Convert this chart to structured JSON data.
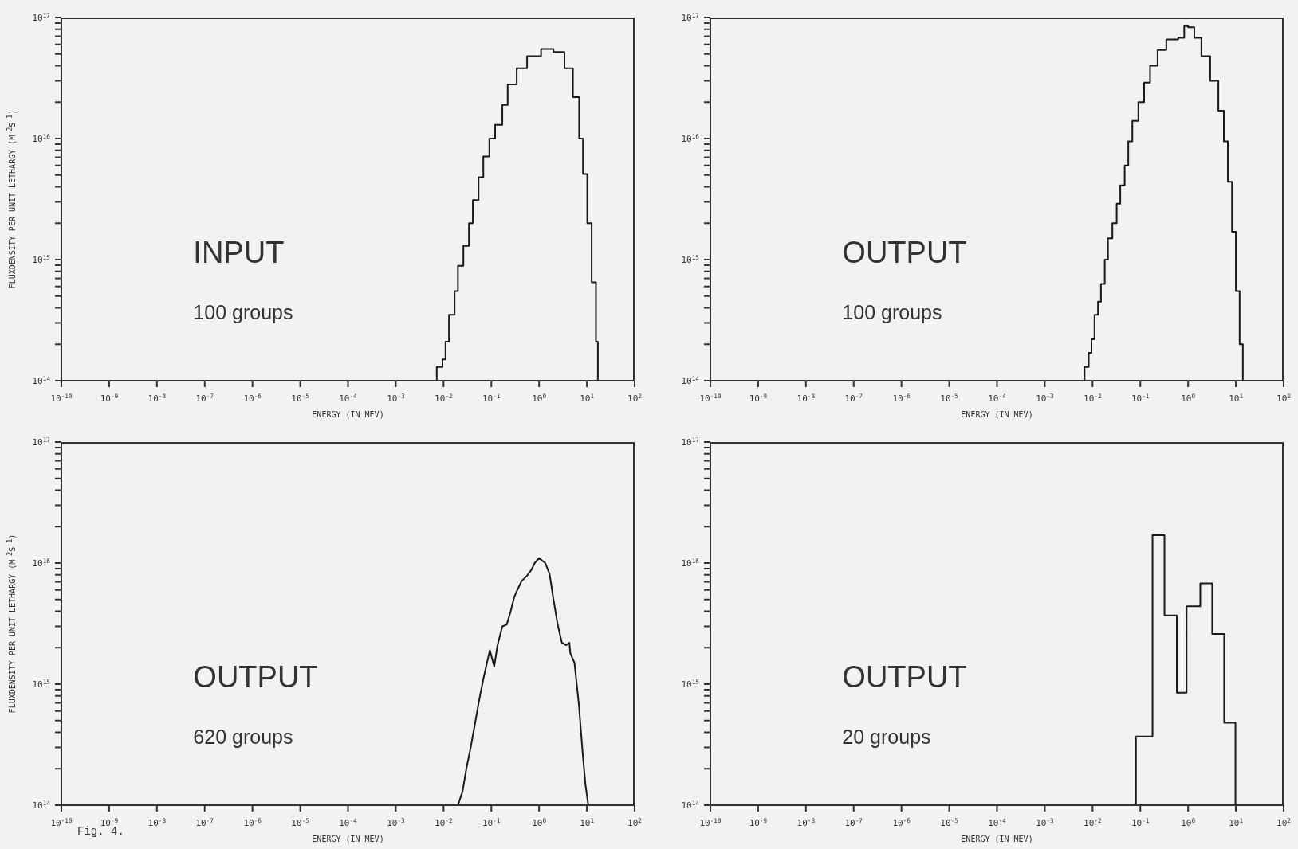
{
  "chart_data": [
    {
      "type": "step",
      "xlabel": "ENERGY (IN MEV)",
      "ylabel": "FLUXDENSITY PER UNIT LETHARGY (M$^{-2}$S$^{-1}$)",
      "log": "xy",
      "xlim": [
        1e-10,
        100
      ],
      "ylim": [
        100000000000000.0,
        1e+17
      ],
      "xticks": [
        {
          "value": 1e-10,
          "label": "10$^{-10}$"
        },
        {
          "value": 1e-09,
          "label": "10$^{-9}$"
        },
        {
          "value": 1e-08,
          "label": "10$^{-8}$"
        },
        {
          "value": 1e-07,
          "label": "10$^{-7}$"
        },
        {
          "value": 1e-06,
          "label": "10$^{-6}$"
        },
        {
          "value": 1e-05,
          "label": "10$^{-5}$"
        },
        {
          "value": 0.0001,
          "label": "10$^{-4}$"
        },
        {
          "value": 0.001,
          "label": "10$^{-3}$"
        },
        {
          "value": 0.01,
          "label": "10$^{-2}$"
        },
        {
          "value": 0.1,
          "label": "10$^{-1}$"
        },
        {
          "value": 1,
          "label": "10$^{0}$"
        },
        {
          "value": 10,
          "label": "10$^{1}$"
        },
        {
          "value": 100,
          "label": "10$^{2}$"
        }
      ],
      "yticks": [
        {
          "value": 100000000000000.0,
          "label": "10$^{14}$"
        },
        {
          "value": 200000000000000.0,
          "label": null
        },
        {
          "value": 300000000000000.0,
          "label": null
        },
        {
          "value": 400000000000000.0,
          "label": null
        },
        {
          "value": 500000000000000.0,
          "label": null
        },
        {
          "value": 600000000000000.0,
          "label": null
        },
        {
          "value": 700000000000000.0,
          "label": null
        },
        {
          "value": 800000000000000.0,
          "label": null
        },
        {
          "value": 900000000000000.0,
          "label": null
        },
        {
          "value": 1000000000000000.0,
          "label": "10$^{15}$"
        },
        {
          "value": 2000000000000000.0,
          "label": null
        },
        {
          "value": 3000000000000000.0,
          "label": null
        },
        {
          "value": 4000000000000000.0,
          "label": null
        },
        {
          "value": 5000000000000000.0,
          "label": null
        },
        {
          "value": 6000000000000000.0,
          "label": null
        },
        {
          "value": 7000000000000000.0,
          "label": null
        },
        {
          "value": 8000000000000000.0,
          "label": null
        },
        {
          "value": 9000000000000000.0,
          "label": null
        },
        {
          "value": 1e+16,
          "label": "10$^{16}$"
        },
        {
          "value": 2e+16,
          "label": null
        },
        {
          "value": 3e+16,
          "label": null
        },
        {
          "value": 4e+16,
          "label": null
        },
        {
          "value": 5e+16,
          "label": null
        },
        {
          "value": 6e+16,
          "label": null
        },
        {
          "value": 7e+16,
          "label": null
        },
        {
          "value": 8e+16,
          "label": null
        },
        {
          "value": 9e+16,
          "label": null
        },
        {
          "value": 1e+17,
          "label": "10$^{17}$"
        }
      ],
      "annotations": [
        "INPUT",
        "100 groups"
      ],
      "series": [
        {
          "color": "#1a1a1a",
          "x": [
            0.0072,
            0.0072,
            0.0095,
            0.011,
            0.013,
            0.017,
            0.02,
            0.026,
            0.034,
            0.041,
            0.054,
            0.068,
            0.091,
            0.12,
            0.17,
            0.22,
            0.34,
            0.56,
            1.1,
            2.0,
            3.4,
            5.1,
            6.9,
            8.3,
            10.2,
            12.6,
            15.5,
            17
          ],
          "values": [
            100000000000000.0,
            130000000000000.0,
            150000000000000.0,
            210000000000000.0,
            350000000000000.0,
            550000000000000.0,
            890000000000000.0,
            1300000000000000.0,
            2000000000000000.0,
            3100000000000000.0,
            4800000000000000.0,
            7100000000000000.0,
            1e+16,
            1.3e+16,
            1.9e+16,
            2.8e+16,
            3.8e+16,
            4.8e+16,
            5.5e+16,
            5.2e+16,
            3.8e+16,
            2.2e+16,
            1e+16,
            5100000000000000.0,
            2000000000000000.0,
            650000000000000.0,
            210000000000000.0,
            100000000000000.0
          ]
        }
      ]
    },
    {
      "type": "step",
      "xlabel": "ENERGY (IN MEV)",
      "log": "xy",
      "xlim": [
        1e-10,
        100
      ],
      "ylim": [
        100000000000000.0,
        1e+17
      ],
      "xticks": [
        {
          "value": 1e-10,
          "label": "10$^{-10}$"
        },
        {
          "value": 1e-09,
          "label": "10$^{-9}$"
        },
        {
          "value": 1e-08,
          "label": "10$^{-8}$"
        },
        {
          "value": 1e-07,
          "label": "10$^{-7}$"
        },
        {
          "value": 1e-06,
          "label": "10$^{-6}$"
        },
        {
          "value": 1e-05,
          "label": "10$^{-5}$"
        },
        {
          "value": 0.0001,
          "label": "10$^{-4}$"
        },
        {
          "value": 0.001,
          "label": "10$^{-3}$"
        },
        {
          "value": 0.01,
          "label": "10$^{-2}$"
        },
        {
          "value": 0.1,
          "label": "10$^{-1}$"
        },
        {
          "value": 1,
          "label": "10$^{0}$"
        },
        {
          "value": 10,
          "label": "10$^{1}$"
        },
        {
          "value": 100,
          "label": "10$^{2}$"
        }
      ],
      "yticks": [
        {
          "value": 100000000000000.0,
          "label": "10$^{14}$"
        },
        {
          "value": 200000000000000.0,
          "label": null
        },
        {
          "value": 300000000000000.0,
          "label": null
        },
        {
          "value": 400000000000000.0,
          "label": null
        },
        {
          "value": 500000000000000.0,
          "label": null
        },
        {
          "value": 600000000000000.0,
          "label": null
        },
        {
          "value": 700000000000000.0,
          "label": null
        },
        {
          "value": 800000000000000.0,
          "label": null
        },
        {
          "value": 900000000000000.0,
          "label": null
        },
        {
          "value": 1000000000000000.0,
          "label": "10$^{15}$"
        },
        {
          "value": 2000000000000000.0,
          "label": null
        },
        {
          "value": 3000000000000000.0,
          "label": null
        },
        {
          "value": 4000000000000000.0,
          "label": null
        },
        {
          "value": 5000000000000000.0,
          "label": null
        },
        {
          "value": 6000000000000000.0,
          "label": null
        },
        {
          "value": 7000000000000000.0,
          "label": null
        },
        {
          "value": 8000000000000000.0,
          "label": null
        },
        {
          "value": 9000000000000000.0,
          "label": null
        },
        {
          "value": 1e+16,
          "label": "10$^{16}$"
        },
        {
          "value": 2e+16,
          "label": null
        },
        {
          "value": 3e+16,
          "label": null
        },
        {
          "value": 4e+16,
          "label": null
        },
        {
          "value": 5e+16,
          "label": null
        },
        {
          "value": 6e+16,
          "label": null
        },
        {
          "value": 7e+16,
          "label": null
        },
        {
          "value": 8e+16,
          "label": null
        },
        {
          "value": 9e+16,
          "label": null
        },
        {
          "value": 1e+17,
          "label": "10$^{17}$"
        }
      ],
      "annotations": [
        "OUTPUT",
        "100 groups"
      ],
      "series": [
        {
          "color": "#1a1a1a",
          "x": [
            0.0066,
            0.0068,
            0.0083,
            0.0095,
            0.011,
            0.013,
            0.015,
            0.018,
            0.021,
            0.026,
            0.032,
            0.038,
            0.047,
            0.056,
            0.068,
            0.091,
            0.12,
            0.16,
            0.23,
            0.35,
            0.62,
            0.83,
            1.0,
            1.35,
            1.9,
            2.9,
            4.3,
            5.6,
            6.8,
            8.3,
            10,
            12,
            14
          ],
          "values": [
            100000000000000.0,
            130000000000000.0,
            170000000000000.0,
            220000000000000.0,
            350000000000000.0,
            450000000000000.0,
            630000000000000.0,
            1000000000000000.0,
            1500000000000000.0,
            2000000000000000.0,
            2900000000000000.0,
            4100000000000000.0,
            6000000000000000.0,
            9500000000000000.0,
            1.4e+16,
            2e+16,
            2.9e+16,
            4e+16,
            5.4e+16,
            6.6e+16,
            6.8e+16,
            8.5e+16,
            8.3e+16,
            6.8e+16,
            4.8e+16,
            3e+16,
            1.7e+16,
            9500000000000000.0,
            4400000000000000.0,
            1700000000000000.0,
            550000000000000.0,
            200000000000000.0,
            100000000000000.0
          ]
        }
      ]
    },
    {
      "type": "line",
      "xlabel": "ENERGY (IN MEV)",
      "ylabel": "FLUXDENSITY PER UNIT LETHARGY (M$^{-2}$S$^{-1}$)",
      "log": "xy",
      "xlim": [
        1e-10,
        100
      ],
      "ylim": [
        100000000000000.0,
        1e+17
      ],
      "xticks": [
        {
          "value": 1e-10,
          "label": "10$^{-10}$"
        },
        {
          "value": 1e-09,
          "label": "10$^{-9}$"
        },
        {
          "value": 1e-08,
          "label": "10$^{-8}$"
        },
        {
          "value": 1e-07,
          "label": "10$^{-7}$"
        },
        {
          "value": 1e-06,
          "label": "10$^{-6}$"
        },
        {
          "value": 1e-05,
          "label": "10$^{-5}$"
        },
        {
          "value": 0.0001,
          "label": "10$^{-4}$"
        },
        {
          "value": 0.001,
          "label": "10$^{-3}$"
        },
        {
          "value": 0.01,
          "label": "10$^{-2}$"
        },
        {
          "value": 0.1,
          "label": "10$^{-1}$"
        },
        {
          "value": 1,
          "label": "10$^{0}$"
        },
        {
          "value": 10,
          "label": "10$^{1}$"
        },
        {
          "value": 100,
          "label": "10$^{2}$"
        }
      ],
      "yticks": [
        {
          "value": 100000000000000.0,
          "label": "10$^{14}$"
        },
        {
          "value": 200000000000000.0,
          "label": null
        },
        {
          "value": 300000000000000.0,
          "label": null
        },
        {
          "value": 400000000000000.0,
          "label": null
        },
        {
          "value": 500000000000000.0,
          "label": null
        },
        {
          "value": 600000000000000.0,
          "label": null
        },
        {
          "value": 700000000000000.0,
          "label": null
        },
        {
          "value": 800000000000000.0,
          "label": null
        },
        {
          "value": 900000000000000.0,
          "label": null
        },
        {
          "value": 1000000000000000.0,
          "label": "10$^{15}$"
        },
        {
          "value": 2000000000000000.0,
          "label": null
        },
        {
          "value": 3000000000000000.0,
          "label": null
        },
        {
          "value": 4000000000000000.0,
          "label": null
        },
        {
          "value": 5000000000000000.0,
          "label": null
        },
        {
          "value": 6000000000000000.0,
          "label": null
        },
        {
          "value": 7000000000000000.0,
          "label": null
        },
        {
          "value": 8000000000000000.0,
          "label": null
        },
        {
          "value": 9000000000000000.0,
          "label": null
        },
        {
          "value": 1e+16,
          "label": "10$^{16}$"
        },
        {
          "value": 2e+16,
          "label": null
        },
        {
          "value": 3e+16,
          "label": null
        },
        {
          "value": 4e+16,
          "label": null
        },
        {
          "value": 5e+16,
          "label": null
        },
        {
          "value": 6e+16,
          "label": null
        },
        {
          "value": 7e+16,
          "label": null
        },
        {
          "value": 8e+16,
          "label": null
        },
        {
          "value": 9e+16,
          "label": null
        },
        {
          "value": 1e+17,
          "label": "10$^{17}$"
        }
      ],
      "annotations": [
        "OUTPUT",
        "620 groups",
        "Fig. 4."
      ],
      "series": [
        {
          "color": "#1a1a1a",
          "x": [
            0.02,
            0.025,
            0.03,
            0.037,
            0.045,
            0.055,
            0.068,
            0.081,
            0.093,
            0.115,
            0.135,
            0.17,
            0.21,
            0.25,
            0.3,
            0.35,
            0.43,
            0.55,
            0.68,
            0.81,
            1.0,
            1.35,
            1.66,
            2.0,
            2.45,
            3.0,
            3.7,
            4.3,
            4.5,
            5.5,
            6.8,
            8.1,
            9.3,
            10.7
          ],
          "values": [
            100000000000000.0,
            130000000000000.0,
            200000000000000.0,
            300000000000000.0,
            460000000000000.0,
            720000000000000.0,
            1100000000000000.0,
            1500000000000000.0,
            1900000000000000.0,
            1400000000000000.0,
            2100000000000000.0,
            3000000000000000.0,
            3100000000000000.0,
            3900000000000000.0,
            5200000000000000.0,
            6000000000000000.0,
            7100000000000000.0,
            7800000000000000.0,
            8700000000000000.0,
            1e+16,
            1.1e+16,
            1e+16,
            8100000000000000.0,
            5000000000000000.0,
            3100000000000000.0,
            2200000000000000.0,
            2100000000000000.0,
            2200000000000000.0,
            1800000000000000.0,
            1500000000000000.0,
            680000000000000.0,
            280000000000000.0,
            150000000000000.0,
            100000000000000.0
          ]
        }
      ]
    },
    {
      "type": "histogram",
      "xlabel": "ENERGY (IN MEV)",
      "log": "xy",
      "xlim": [
        1e-10,
        100
      ],
      "ylim": [
        100000000000000.0,
        1e+17
      ],
      "xticks": [
        {
          "value": 1e-10,
          "label": "10$^{-10}$"
        },
        {
          "value": 1e-09,
          "label": "10$^{-9}$"
        },
        {
          "value": 1e-08,
          "label": "10$^{-8}$"
        },
        {
          "value": 1e-07,
          "label": "10$^{-7}$"
        },
        {
          "value": 1e-06,
          "label": "10$^{-6}$"
        },
        {
          "value": 1e-05,
          "label": "10$^{-5}$"
        },
        {
          "value": 0.0001,
          "label": "10$^{-4}$"
        },
        {
          "value": 0.001,
          "label": "10$^{-3}$"
        },
        {
          "value": 0.01,
          "label": "10$^{-2}$"
        },
        {
          "value": 0.1,
          "label": "10$^{-1}$"
        },
        {
          "value": 1,
          "label": "10$^{0}$"
        },
        {
          "value": 10,
          "label": "10$^{1}$"
        },
        {
          "value": 100,
          "label": "10$^{2}$"
        }
      ],
      "yticks": [
        {
          "value": 100000000000000.0,
          "label": "10$^{14}$"
        },
        {
          "value": 200000000000000.0,
          "label": null
        },
        {
          "value": 300000000000000.0,
          "label": null
        },
        {
          "value": 400000000000000.0,
          "label": null
        },
        {
          "value": 500000000000000.0,
          "label": null
        },
        {
          "value": 600000000000000.0,
          "label": null
        },
        {
          "value": 700000000000000.0,
          "label": null
        },
        {
          "value": 800000000000000.0,
          "label": null
        },
        {
          "value": 900000000000000.0,
          "label": null
        },
        {
          "value": 1000000000000000.0,
          "label": "10$^{15}$"
        },
        {
          "value": 2000000000000000.0,
          "label": null
        },
        {
          "value": 3000000000000000.0,
          "label": null
        },
        {
          "value": 4000000000000000.0,
          "label": null
        },
        {
          "value": 5000000000000000.0,
          "label": null
        },
        {
          "value": 6000000000000000.0,
          "label": null
        },
        {
          "value": 7000000000000000.0,
          "label": null
        },
        {
          "value": 8000000000000000.0,
          "label": null
        },
        {
          "value": 9000000000000000.0,
          "label": null
        },
        {
          "value": 1e+16,
          "label": "10$^{16}$"
        },
        {
          "value": 2e+16,
          "label": null
        },
        {
          "value": 3e+16,
          "label": null
        },
        {
          "value": 4e+16,
          "label": null
        },
        {
          "value": 5e+16,
          "label": null
        },
        {
          "value": 6e+16,
          "label": null
        },
        {
          "value": 7e+16,
          "label": null
        },
        {
          "value": 8e+16,
          "label": null
        },
        {
          "value": 9e+16,
          "label": null
        },
        {
          "value": 1e+17,
          "label": "10$^{17}$"
        }
      ],
      "annotations": [
        "OUTPUT",
        "20 groups"
      ],
      "color": "#1a1a1a",
      "bins": [
        0.081,
        0.18,
        0.32,
        0.58,
        0.93,
        1.8,
        3.2,
        5.7,
        9.8
      ],
      "values": [
        370000000000000.0,
        1.7e+16,
        3700000000000000.0,
        850000000000000.0,
        4400000000000000.0,
        6800000000000000.0,
        2600000000000000.0,
        480000000000000.0
      ]
    }
  ]
}
